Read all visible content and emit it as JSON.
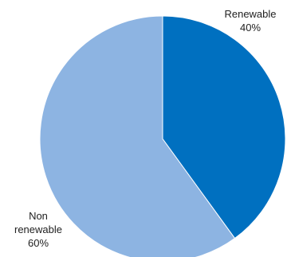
{
  "chart_data": {
    "type": "pie",
    "slices": [
      {
        "label": "Renewable",
        "value": 40,
        "value_label": "40%",
        "color": "#0070c0"
      },
      {
        "label_lines": [
          "Non",
          "renewable"
        ],
        "value": 60,
        "value_label": "60%",
        "color": "#8db4e2"
      }
    ],
    "start_angle_deg": 0,
    "direction": "clockwise",
    "legend": "none"
  }
}
